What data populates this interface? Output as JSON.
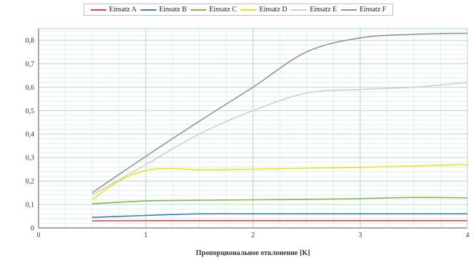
{
  "chart_data": {
    "type": "line",
    "title": "",
    "xlabel": "Пропорциональное отклонение [K]",
    "ylabel": "",
    "xlim": [
      0,
      4
    ],
    "ylim": [
      0,
      0.85
    ],
    "x_ticks": [
      "0",
      "1",
      "2",
      "3",
      "4"
    ],
    "y_ticks": [
      "0",
      "0,1",
      "0,2",
      "0,3",
      "0,4",
      "0,5",
      "0,6",
      "0,7",
      "0,8"
    ],
    "grid": true,
    "legend_position": "top",
    "series": [
      {
        "name": "Einsatz A",
        "color": "#e8413c",
        "points": [
          [
            0.5,
            0.03
          ],
          [
            1,
            0.031
          ],
          [
            1.5,
            0.031
          ],
          [
            2,
            0.031
          ],
          [
            2.5,
            0.031
          ],
          [
            3,
            0.031
          ],
          [
            3.5,
            0.031
          ],
          [
            4,
            0.031
          ]
        ]
      },
      {
        "name": "Einsatz B",
        "color": "#3b7dc4",
        "points": [
          [
            0.5,
            0.045
          ],
          [
            1,
            0.053
          ],
          [
            1.5,
            0.06
          ],
          [
            2,
            0.06
          ],
          [
            2.5,
            0.06
          ],
          [
            3,
            0.06
          ],
          [
            3.5,
            0.06
          ],
          [
            4,
            0.06
          ]
        ]
      },
      {
        "name": "Einsatz C",
        "color": "#7dbb4a",
        "points": [
          [
            0.5,
            0.103
          ],
          [
            1,
            0.115
          ],
          [
            1.5,
            0.118
          ],
          [
            2,
            0.12
          ],
          [
            2.5,
            0.122
          ],
          [
            3,
            0.125
          ],
          [
            3.5,
            0.13
          ],
          [
            4,
            0.128
          ]
        ]
      },
      {
        "name": "Einsatz D",
        "color": "#f0e21a",
        "points": [
          [
            0.5,
            0.12
          ],
          [
            0.75,
            0.2
          ],
          [
            1,
            0.245
          ],
          [
            1.25,
            0.253
          ],
          [
            1.5,
            0.248
          ],
          [
            2,
            0.25
          ],
          [
            2.5,
            0.255
          ],
          [
            3,
            0.258
          ],
          [
            3.5,
            0.264
          ],
          [
            4,
            0.27
          ]
        ]
      },
      {
        "name": "Einsatz E",
        "color": "#cfcfcf",
        "points": [
          [
            0.5,
            0.14
          ],
          [
            1,
            0.27
          ],
          [
            1.5,
            0.4
          ],
          [
            2,
            0.5
          ],
          [
            2.5,
            0.575
          ],
          [
            3,
            0.59
          ],
          [
            3.5,
            0.6
          ],
          [
            4,
            0.62
          ]
        ]
      },
      {
        "name": "Einsatz F",
        "color": "#939393",
        "points": [
          [
            0.5,
            0.15
          ],
          [
            1,
            0.305
          ],
          [
            1.5,
            0.455
          ],
          [
            2,
            0.6
          ],
          [
            2.5,
            0.75
          ],
          [
            3,
            0.81
          ],
          [
            3.5,
            0.825
          ],
          [
            4,
            0.83
          ]
        ]
      }
    ]
  }
}
